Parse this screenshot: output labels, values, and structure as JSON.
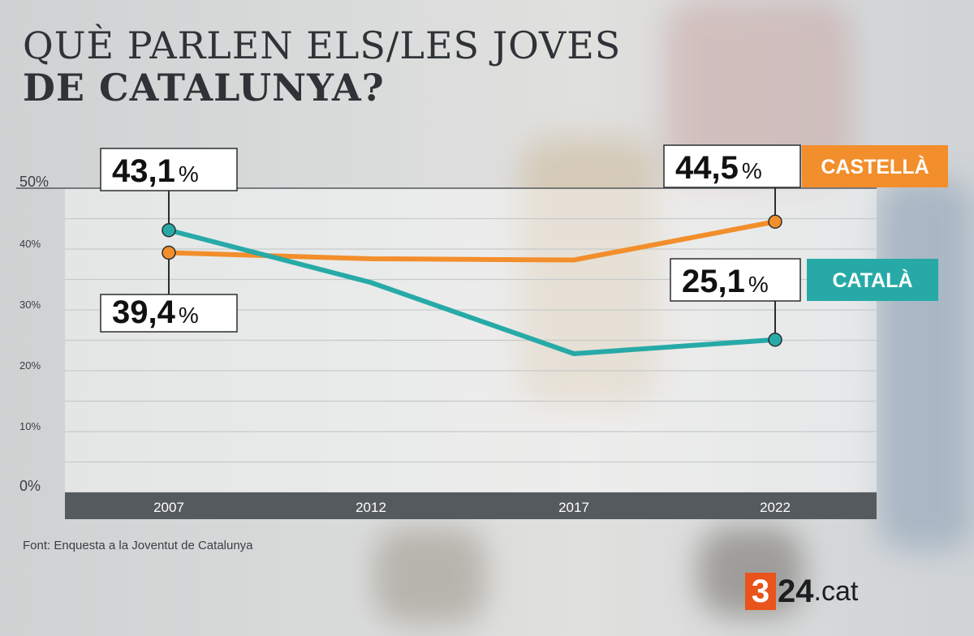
{
  "title_line1": "QUÈ PARLEN ELS/LES JOVES",
  "title_line2": "DE CATALUNYA?",
  "source": "Font: Enquesta a la Joventut de Catalunya",
  "logo": {
    "digit": "3",
    "rest": "24",
    "tld": ".cat"
  },
  "colors": {
    "castella": "#f28e2b",
    "catala": "#27aaa7",
    "axis_bar": "#555a5e",
    "title": "#2f3337"
  },
  "chart_data": {
    "type": "line",
    "title": "QUÈ PARLEN ELS/LES JOVES DE CATALUNYA?",
    "categories": [
      "2007",
      "2012",
      "2017",
      "2022"
    ],
    "ylim": [
      0,
      50
    ],
    "yticks": [
      "0%",
      "10%",
      "20%",
      "30%",
      "40%",
      "50%"
    ],
    "grid": true,
    "series": [
      {
        "name": "CASTELLÀ",
        "values": [
          39.4,
          38.4,
          38.2,
          44.5
        ],
        "color": "#f28e2b",
        "callouts": [
          {
            "index": 0,
            "num": "39,4",
            "pct": "%"
          },
          {
            "index": 3,
            "num": "44,5",
            "pct": "%"
          }
        ]
      },
      {
        "name": "CATALÀ",
        "values": [
          43.1,
          34.5,
          22.8,
          25.1
        ],
        "color": "#27aaa7",
        "callouts": [
          {
            "index": 0,
            "num": "43,1",
            "pct": "%"
          },
          {
            "index": 3,
            "num": "25,1",
            "pct": "%"
          }
        ]
      }
    ]
  }
}
